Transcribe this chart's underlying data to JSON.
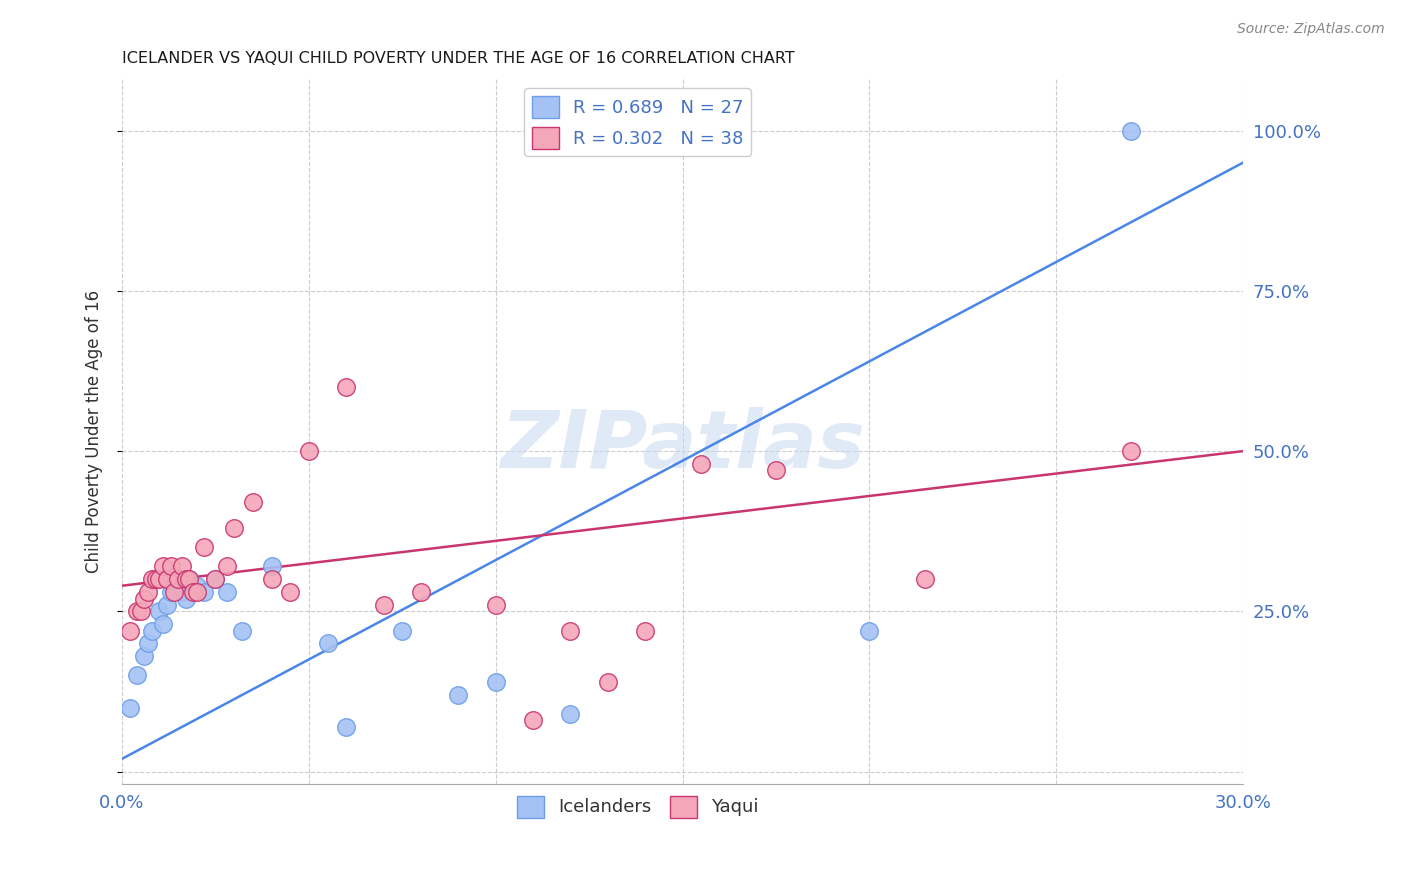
{
  "title": "ICELANDER VS YAQUI CHILD POVERTY UNDER THE AGE OF 16 CORRELATION CHART",
  "source": "Source: ZipAtlas.com",
  "ylabel": "Child Poverty Under the Age of 16",
  "xlim": [
    0.0,
    0.3
  ],
  "ylim": [
    -0.02,
    1.08
  ],
  "x_ticks": [
    0.0,
    0.05,
    0.1,
    0.15,
    0.2,
    0.25,
    0.3
  ],
  "x_tick_labels": [
    "0.0%",
    "",
    "",
    "",
    "",
    "",
    "30.0%"
  ],
  "y_tick_labels_right": [
    "100.0%",
    "75.0%",
    "50.0%",
    "25.0%"
  ],
  "y_ticks_right": [
    1.0,
    0.75,
    0.5,
    0.25
  ],
  "legend_r1": "R = 0.689   N = 27",
  "legend_r2": "R = 0.302   N = 38",
  "legend_labels": [
    "Icelanders",
    "Yaqui"
  ],
  "blue_color": "#a4c2f4",
  "blue_edge": "#6d9eeb",
  "pink_color": "#f4a7b9",
  "pink_edge": "#c9356e",
  "line_blue": "#4a86e8",
  "line_pink": "#c9356e",
  "watermark": "ZIPatlas",
  "blue_scatter_x": [
    0.002,
    0.004,
    0.006,
    0.007,
    0.008,
    0.01,
    0.011,
    0.012,
    0.013,
    0.015,
    0.016,
    0.017,
    0.018,
    0.02,
    0.022,
    0.025,
    0.028,
    0.032,
    0.04,
    0.055,
    0.06,
    0.075,
    0.09,
    0.1,
    0.12,
    0.2,
    0.27
  ],
  "blue_scatter_y": [
    0.1,
    0.15,
    0.18,
    0.2,
    0.22,
    0.25,
    0.23,
    0.26,
    0.28,
    0.3,
    0.28,
    0.27,
    0.3,
    0.29,
    0.28,
    0.3,
    0.28,
    0.22,
    0.32,
    0.2,
    0.07,
    0.22,
    0.12,
    0.14,
    0.09,
    0.22,
    1.0
  ],
  "pink_scatter_x": [
    0.002,
    0.004,
    0.005,
    0.006,
    0.007,
    0.008,
    0.009,
    0.01,
    0.011,
    0.012,
    0.013,
    0.014,
    0.015,
    0.016,
    0.017,
    0.018,
    0.019,
    0.02,
    0.022,
    0.025,
    0.028,
    0.03,
    0.035,
    0.04,
    0.045,
    0.05,
    0.06,
    0.07,
    0.08,
    0.1,
    0.11,
    0.12,
    0.13,
    0.14,
    0.155,
    0.175,
    0.215,
    0.27
  ],
  "pink_scatter_y": [
    0.22,
    0.25,
    0.25,
    0.27,
    0.28,
    0.3,
    0.3,
    0.3,
    0.32,
    0.3,
    0.32,
    0.28,
    0.3,
    0.32,
    0.3,
    0.3,
    0.28,
    0.28,
    0.35,
    0.3,
    0.32,
    0.38,
    0.42,
    0.3,
    0.28,
    0.5,
    0.6,
    0.26,
    0.28,
    0.26,
    0.08,
    0.22,
    0.14,
    0.22,
    0.48,
    0.47,
    0.3,
    0.5
  ],
  "blue_line_x": [
    0.0,
    0.3
  ],
  "blue_line_y": [
    0.02,
    0.95
  ],
  "pink_line_x": [
    0.0,
    0.3
  ],
  "pink_line_y": [
    0.29,
    0.5
  ]
}
